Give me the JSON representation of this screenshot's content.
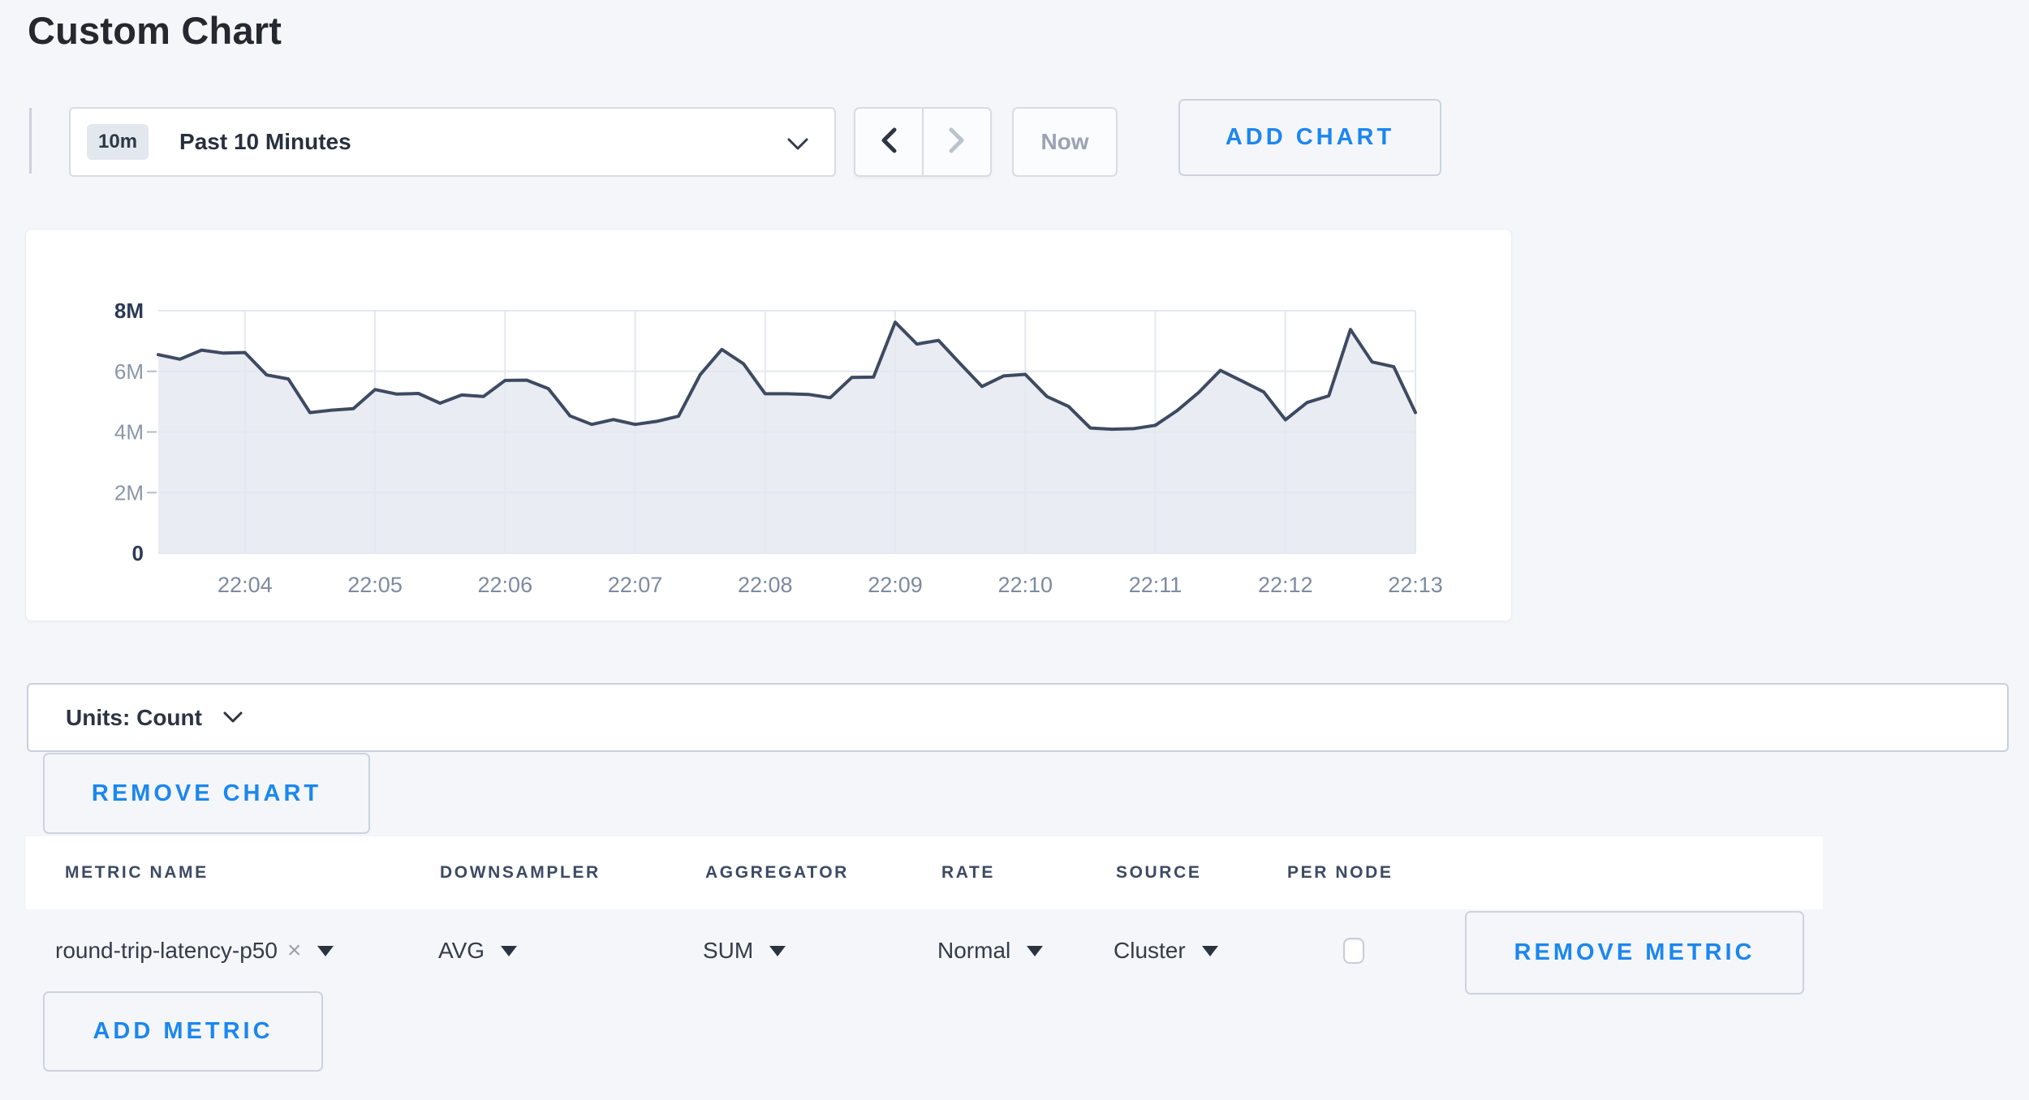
{
  "page": {
    "title": "Custom Chart"
  },
  "colors": {
    "accent_blue": "#1b87f0",
    "page_bg": "#f5f6fa",
    "line": "#3e4a61",
    "area_fill": "#e9ecf2",
    "grid": "#e4e8f0",
    "axis_muted": "#8a96a9",
    "axis_bold": "#2b3a55",
    "x_label": "#7d8aa0"
  },
  "toolbar": {
    "time_window": {
      "badge": "10m",
      "label": "Past 10 Minutes"
    },
    "now_label": "Now",
    "add_chart_label": "ADD CHART"
  },
  "chart_data": {
    "type": "area",
    "title": "",
    "xlabel": "",
    "ylabel": "",
    "unit": "Count",
    "grid": true,
    "legend": "none",
    "ylim": [
      0,
      8000000
    ],
    "y_ticks": [
      {
        "label": "0",
        "value": 0,
        "bold": true
      },
      {
        "label": "2M",
        "value": 2000000,
        "bold": false
      },
      {
        "label": "4M",
        "value": 4000000,
        "bold": false
      },
      {
        "label": "6M",
        "value": 6000000,
        "bold": false
      },
      {
        "label": "8M",
        "value": 8000000,
        "bold": true
      }
    ],
    "x_ticks": [
      "22:04",
      "22:05",
      "22:06",
      "22:07",
      "22:08",
      "22:09",
      "22:10",
      "22:11",
      "22:12",
      "22:13"
    ],
    "x_start": "22:03:20",
    "x_step_seconds": 10,
    "series": [
      {
        "name": "round-trip-latency-p50",
        "values": [
          6550000,
          6400000,
          6700000,
          6600000,
          6620000,
          5880000,
          5750000,
          4640000,
          4720000,
          4770000,
          5400000,
          5250000,
          5270000,
          4950000,
          5220000,
          5170000,
          5700000,
          5710000,
          5430000,
          4530000,
          4250000,
          4410000,
          4250000,
          4350000,
          4520000,
          5890000,
          6720000,
          6250000,
          5260000,
          5260000,
          5240000,
          5130000,
          5800000,
          5810000,
          7620000,
          6900000,
          7020000,
          6250000,
          5500000,
          5850000,
          5900000,
          5170000,
          4840000,
          4130000,
          4090000,
          4110000,
          4220000,
          4700000,
          5300000,
          6030000,
          5680000,
          5320000,
          4400000,
          4970000,
          5190000,
          7380000,
          6310000,
          6150000,
          4640000
        ]
      }
    ]
  },
  "units_bar": {
    "label": "Units: Count"
  },
  "chart_actions": {
    "remove_chart_label": "REMOVE CHART"
  },
  "metrics_table": {
    "columns": [
      "METRIC NAME",
      "DOWNSAMPLER",
      "AGGREGATOR",
      "RATE",
      "SOURCE",
      "PER NODE"
    ],
    "rows": [
      {
        "metric_name": "round-trip-latency-p50",
        "remove_x": "×",
        "downsampler": "AVG",
        "aggregator": "SUM",
        "rate": "Normal",
        "source": "Cluster",
        "per_node_checked": false,
        "remove_label": "REMOVE METRIC"
      }
    ],
    "add_metric_label": "ADD METRIC"
  }
}
